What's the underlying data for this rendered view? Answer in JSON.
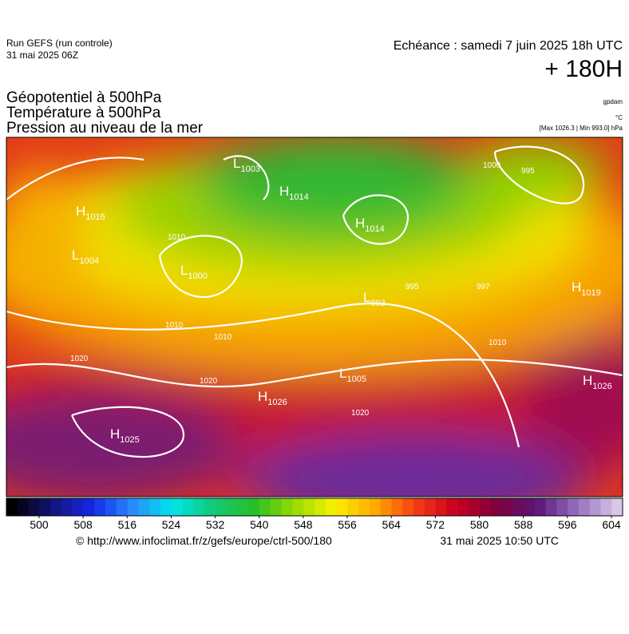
{
  "header": {
    "run": "Run GEFS (run controle)",
    "run_date": "31 mai 2025 06Z",
    "echeance": "Echéance : samedi 7 juin 2025 18h UTC",
    "lead": "+ 180H",
    "fields": [
      "Géopotentiel à 500hPa",
      "Température à 500hPa",
      "Pression au niveau de la mer"
    ],
    "units": [
      "gpdam",
      "°C",
      "[Max 1026.3 | Min 993.0] hPa"
    ]
  },
  "map": {
    "centers": [
      {
        "letter": "L",
        "value": "1003"
      },
      {
        "letter": "H",
        "value": "1014"
      },
      {
        "letter": "H",
        "value": "1016"
      },
      {
        "letter": "L",
        "value": "1004"
      },
      {
        "letter": "L",
        "value": "1000"
      },
      {
        "letter": "H",
        "value": "1014"
      },
      {
        "letter": "L",
        "value": "993"
      },
      {
        "letter": "L",
        "value": "1005"
      },
      {
        "letter": "H",
        "value": "1026"
      },
      {
        "letter": "H",
        "value": "1025"
      },
      {
        "letter": "H",
        "value": "1026"
      },
      {
        "letter": "H",
        "value": "1019"
      }
    ],
    "isobar_labels": [
      "1010",
      "1010",
      "1010",
      "1020",
      "1020",
      "1020",
      "1010",
      "997",
      "995",
      "995",
      "1000"
    ]
  },
  "colorbar": {
    "ticks": [
      500,
      508,
      516,
      524,
      532,
      540,
      548,
      556,
      564,
      572,
      580,
      588,
      596,
      604
    ]
  },
  "footer": {
    "url": "© http://www.infoclimat.fr/z/gefs/europe/ctrl-500/180",
    "time": "31 mai 2025 10:50 UTC"
  }
}
